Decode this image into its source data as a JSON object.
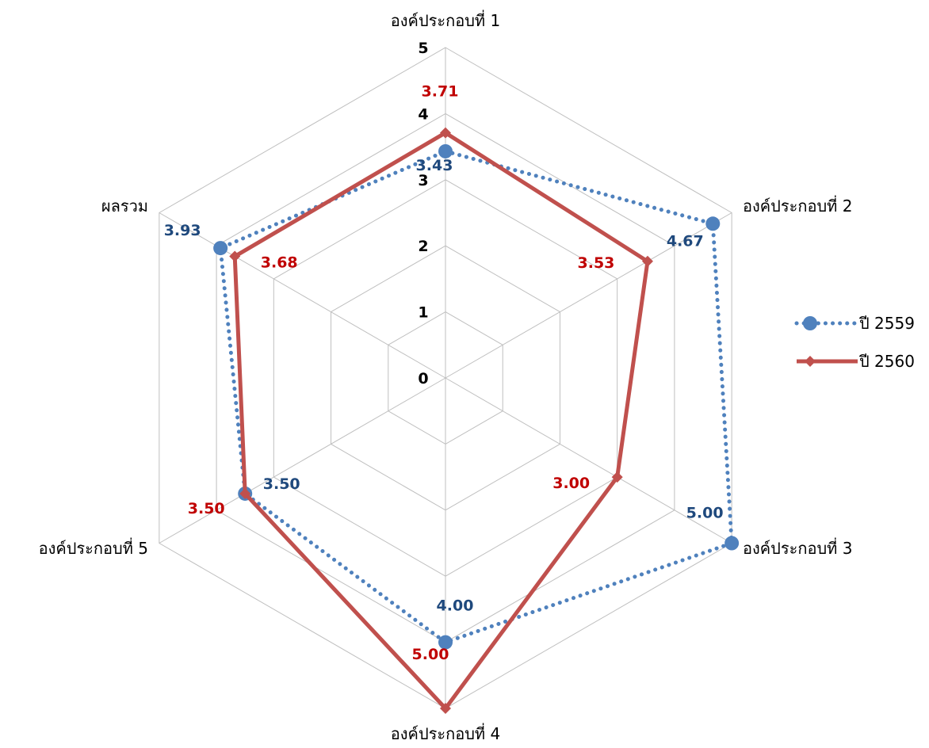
{
  "chart_data": {
    "type": "radar",
    "title": "",
    "categories": [
      "องค์ประกอบที่ 1",
      "องค์ประกอบที่ 2",
      "องค์ประกอบที่ 3",
      "องค์ประกอบที่ 4",
      "องค์ประกอบที่ 5",
      "ผลรวม"
    ],
    "axis_range": [
      0,
      5
    ],
    "ticks": [
      "0",
      "1",
      "2",
      "3",
      "4",
      "5"
    ],
    "grid": true,
    "legend_position": "right",
    "series": [
      {
        "name": "ปี 2559",
        "values": [
          3.43,
          4.67,
          5.0,
          4.0,
          3.5,
          3.93
        ],
        "labels": [
          "3.43",
          "4.67",
          "5.00",
          "4.00",
          "3.50",
          "3.93"
        ],
        "color": "#4F81BD",
        "line_style": "dotted",
        "marker": "circle"
      },
      {
        "name": "ปี 2560",
        "values": [
          3.71,
          3.53,
          3.0,
          5.0,
          3.5,
          3.68
        ],
        "labels": [
          "3.71",
          "3.53",
          "3.00",
          "5.00",
          "3.50",
          "3.68"
        ],
        "color": "#C0504D",
        "line_style": "solid",
        "marker": "diamond"
      }
    ]
  },
  "colors": {
    "grid": "#BFBFBF",
    "label_2559": "#1F497D",
    "label_2560": "#C00000"
  }
}
